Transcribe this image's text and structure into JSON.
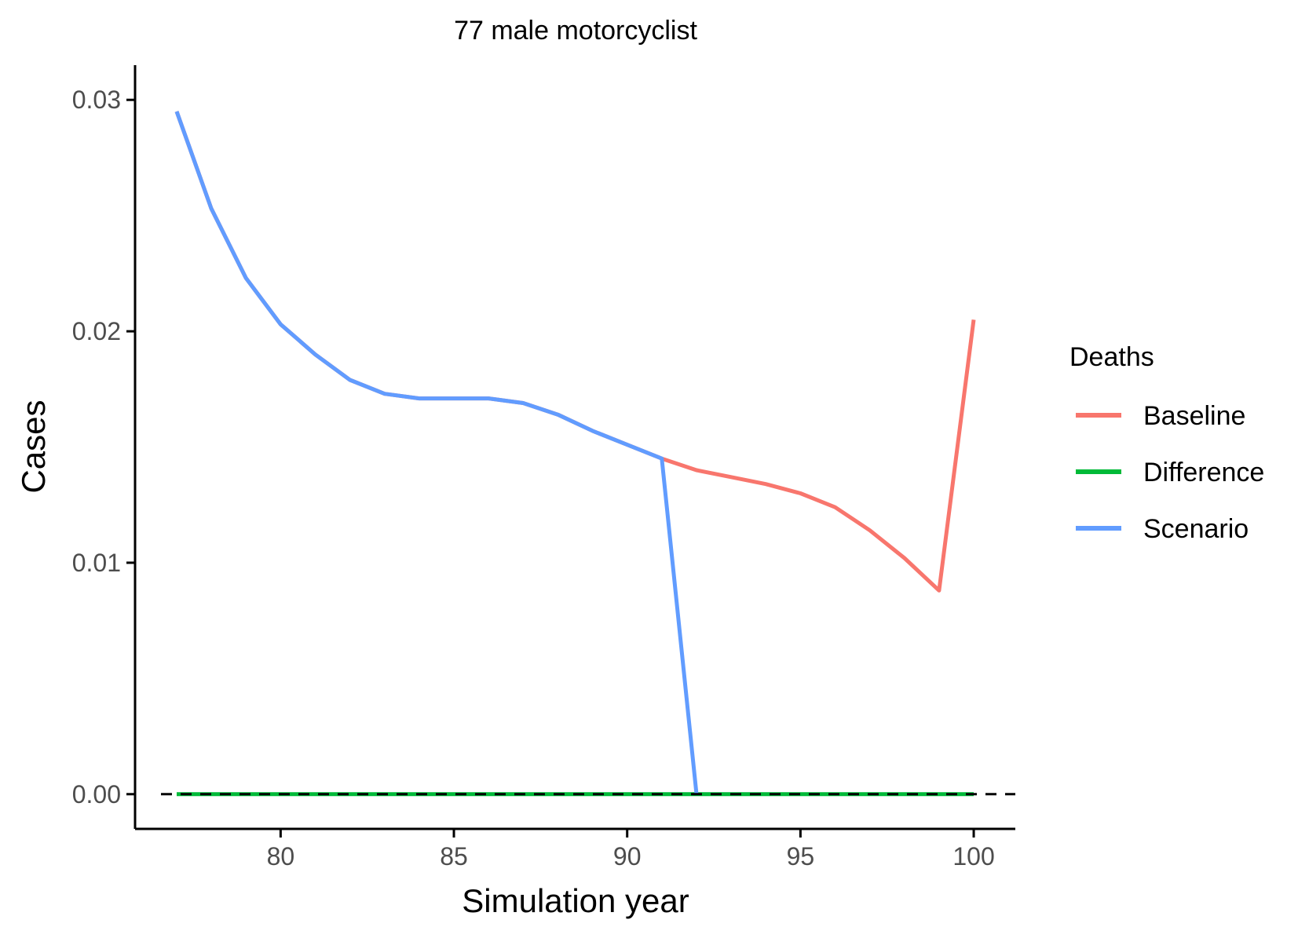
{
  "chart_data": {
    "type": "line",
    "title": "77 male motorcyclist",
    "xlabel": "Simulation year",
    "ylabel": "Cases",
    "xlim": [
      75.8,
      101.2
    ],
    "ylim": [
      -0.0015,
      0.0315
    ],
    "x_ticks": [
      80,
      85,
      90,
      95,
      100
    ],
    "x_tick_labels": [
      "80",
      "85",
      "90",
      "95",
      "100"
    ],
    "y_ticks": [
      0,
      0.01,
      0.02,
      0.03
    ],
    "y_tick_labels": [
      "0.00",
      "0.01",
      "0.02",
      "0.03"
    ],
    "reference_line": {
      "y": 0,
      "style": "dashed",
      "color": "#000000"
    },
    "legend": {
      "title": "Deaths",
      "placement": "right"
    },
    "grid": false,
    "series": [
      {
        "name": "Baseline",
        "color": "#F8766D",
        "x": [
          77,
          78,
          79,
          80,
          81,
          82,
          83,
          84,
          85,
          86,
          87,
          88,
          89,
          90,
          91,
          92,
          93,
          94,
          95,
          96,
          97,
          98,
          99,
          100
        ],
        "values": [
          0.0295,
          0.0253,
          0.0223,
          0.0203,
          0.019,
          0.0179,
          0.0173,
          0.0171,
          0.0171,
          0.0171,
          0.0169,
          0.0164,
          0.0157,
          0.0151,
          0.0145,
          0.014,
          0.0137,
          0.0134,
          0.013,
          0.0124,
          0.0114,
          0.0102,
          0.0088,
          0.0205
        ]
      },
      {
        "name": "Difference",
        "color": "#00BA38",
        "x": [
          77,
          78,
          79,
          80,
          81,
          82,
          83,
          84,
          85,
          86,
          87,
          88,
          89,
          90,
          91,
          92,
          93,
          94,
          95,
          96,
          97,
          98,
          99,
          100
        ],
        "values": [
          0,
          0,
          0,
          0,
          0,
          0,
          0,
          0,
          0,
          0,
          0,
          0,
          0,
          0,
          0,
          0,
          0,
          0,
          0,
          0,
          0,
          0,
          0,
          0
        ]
      },
      {
        "name": "Scenario",
        "color": "#619CFF",
        "x": [
          77,
          78,
          79,
          80,
          81,
          82,
          83,
          84,
          85,
          86,
          87,
          88,
          89,
          90,
          91,
          92
        ],
        "values": [
          0.0295,
          0.0253,
          0.0223,
          0.0203,
          0.019,
          0.0179,
          0.0173,
          0.0171,
          0.0171,
          0.0171,
          0.0169,
          0.0164,
          0.0157,
          0.0151,
          0.0145,
          0.0
        ]
      }
    ]
  }
}
